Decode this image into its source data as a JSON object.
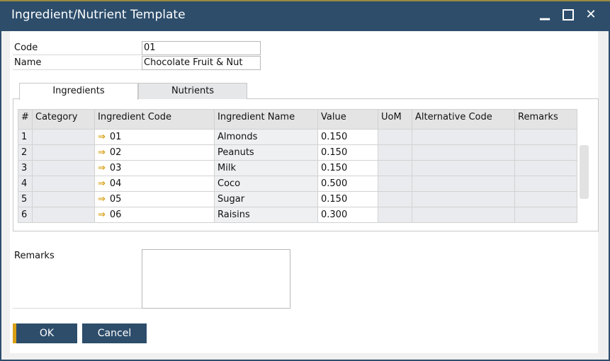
{
  "window": {
    "title": "Ingredient/Nutrient Template",
    "minimize_icon": "minimize-icon",
    "maximize_icon": "maximize-icon",
    "close_icon": "close-icon"
  },
  "header": {
    "code_label": "Code",
    "code_value": "01",
    "name_label": "Name",
    "name_value": "Chocolate Fruit & Nut"
  },
  "tabs": [
    {
      "label": "Ingredients",
      "active": true
    },
    {
      "label": "Nutrients",
      "active": false
    }
  ],
  "grid": {
    "columns": [
      "#",
      "Category",
      "Ingredient Code",
      "Ingredient Name",
      "Value",
      "UoM",
      "Alternative Code",
      "Remarks"
    ],
    "rows": [
      {
        "num": "1",
        "category": "",
        "code": "01",
        "name": "Almonds",
        "value": "0.150",
        "uom": "",
        "alt": "",
        "remarks": ""
      },
      {
        "num": "2",
        "category": "",
        "code": "02",
        "name": "Peanuts",
        "value": "0.150",
        "uom": "",
        "alt": "",
        "remarks": ""
      },
      {
        "num": "3",
        "category": "",
        "code": "03",
        "name": "Milk",
        "value": "0.150",
        "uom": "",
        "alt": "",
        "remarks": ""
      },
      {
        "num": "4",
        "category": "",
        "code": "04",
        "name": "Coco",
        "value": "0.500",
        "uom": "",
        "alt": "",
        "remarks": ""
      },
      {
        "num": "5",
        "category": "",
        "code": "05",
        "name": "Sugar",
        "value": "0.150",
        "uom": "",
        "alt": "",
        "remarks": ""
      },
      {
        "num": "6",
        "category": "",
        "code": "06",
        "name": "Raisins",
        "value": "0.300",
        "uom": "",
        "alt": "",
        "remarks": ""
      }
    ]
  },
  "footer": {
    "remarks_label": "Remarks",
    "remarks_value": "",
    "ok_label": "OK",
    "cancel_label": "Cancel"
  },
  "colors": {
    "titlebar": "#2d4d6b",
    "accent": "#d9a016"
  }
}
